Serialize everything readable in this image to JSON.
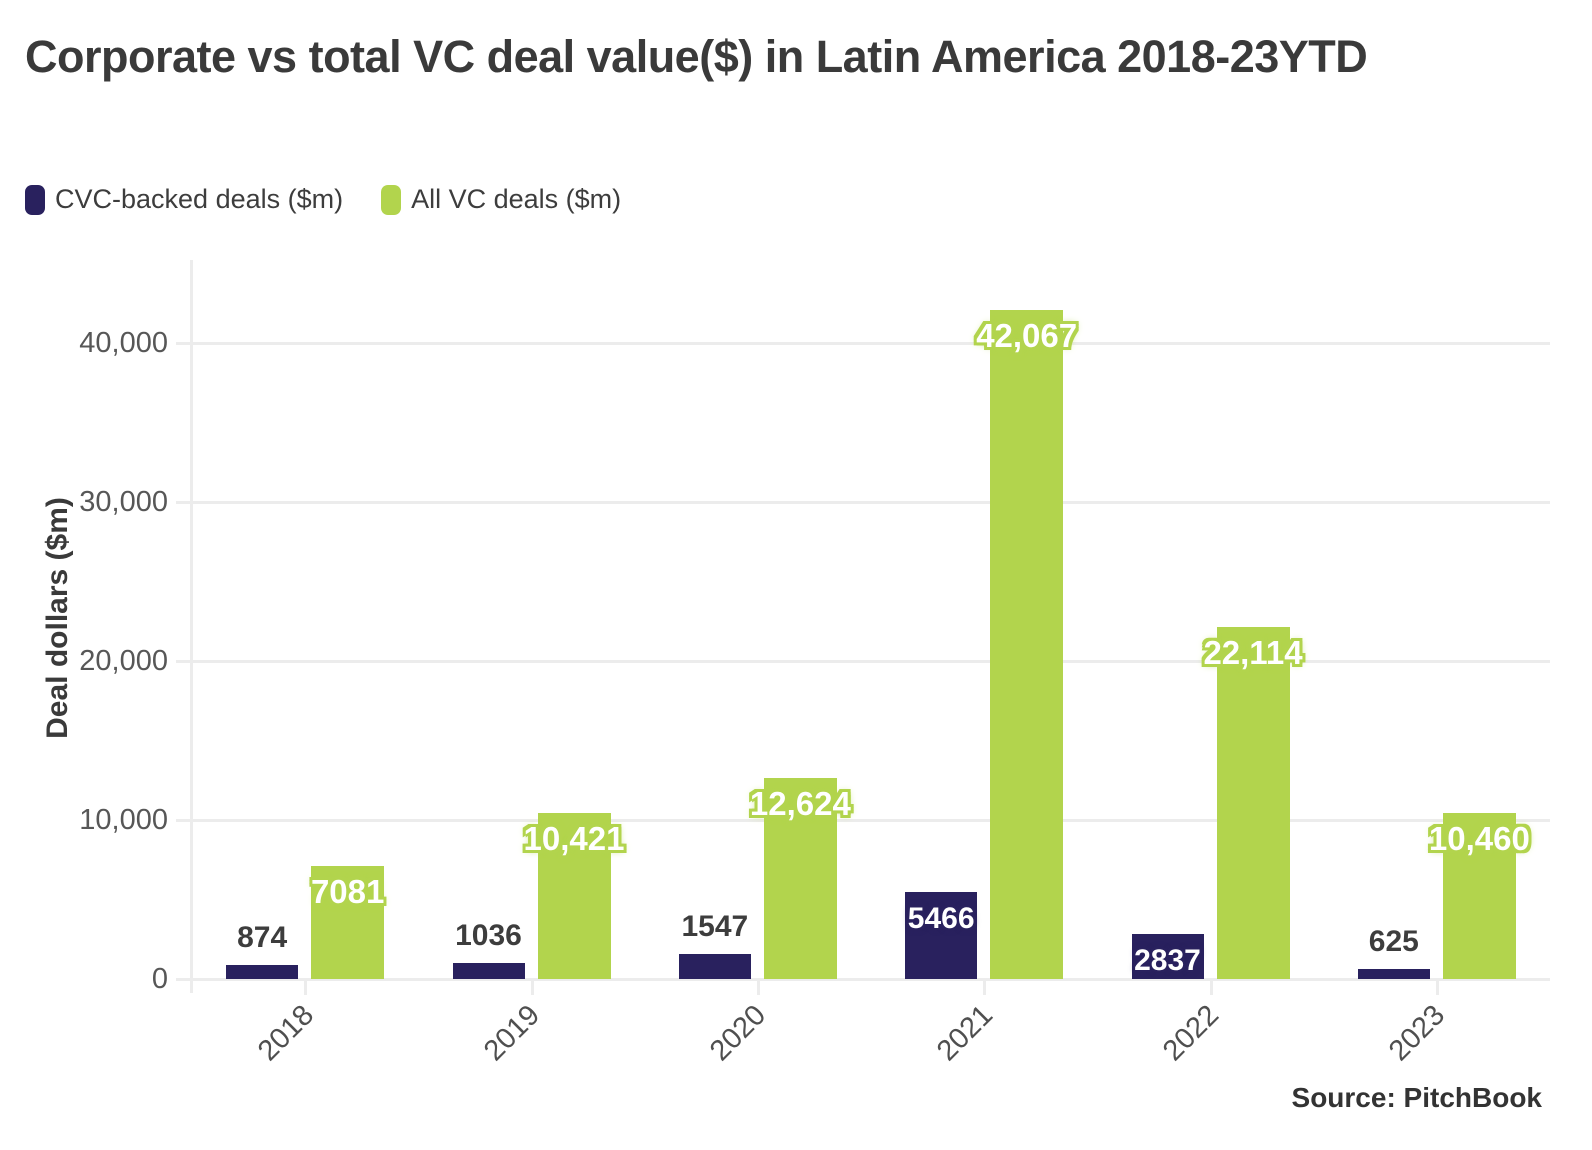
{
  "title": "Corporate vs total VC deal value($) in Latin America 2018-23YTD",
  "legend": [
    {
      "label": "CVC-backed deals ($m)",
      "color": "#29215e"
    },
    {
      "label": "All VC deals ($m)",
      "color": "#b2d44d"
    }
  ],
  "source": "Source: PitchBook",
  "chart_data": {
    "type": "bar",
    "title": "Corporate vs total VC deal value($) in Latin America 2018-23YTD",
    "categories": [
      "2018",
      "2019",
      "2020",
      "2021",
      "2022",
      "2023"
    ],
    "series": [
      {
        "name": "CVC-backed deals ($m)",
        "color": "#29215e",
        "values": [
          874,
          1036,
          1547,
          5466,
          2837,
          625
        ],
        "labels": [
          "874",
          "1036",
          "1547",
          "5466",
          "2837",
          "625"
        ]
      },
      {
        "name": "All VC deals ($m)",
        "color": "#b2d44d",
        "values": [
          7081,
          10421,
          12624,
          42067,
          22114,
          10460
        ],
        "labels": [
          "7081",
          "10,421",
          "12,624",
          "42,067",
          "22,114",
          "10,460"
        ]
      }
    ],
    "xlabel": "",
    "ylabel": "Deal dollars ($m)",
    "ylim": [
      0,
      45200
    ],
    "yticks": [
      0,
      10000,
      20000,
      30000,
      40000
    ],
    "ytick_labels": [
      "0",
      "10,000",
      "20,000",
      "30,000",
      "40,000"
    ],
    "grid": true,
    "legend_position": "top-left"
  }
}
